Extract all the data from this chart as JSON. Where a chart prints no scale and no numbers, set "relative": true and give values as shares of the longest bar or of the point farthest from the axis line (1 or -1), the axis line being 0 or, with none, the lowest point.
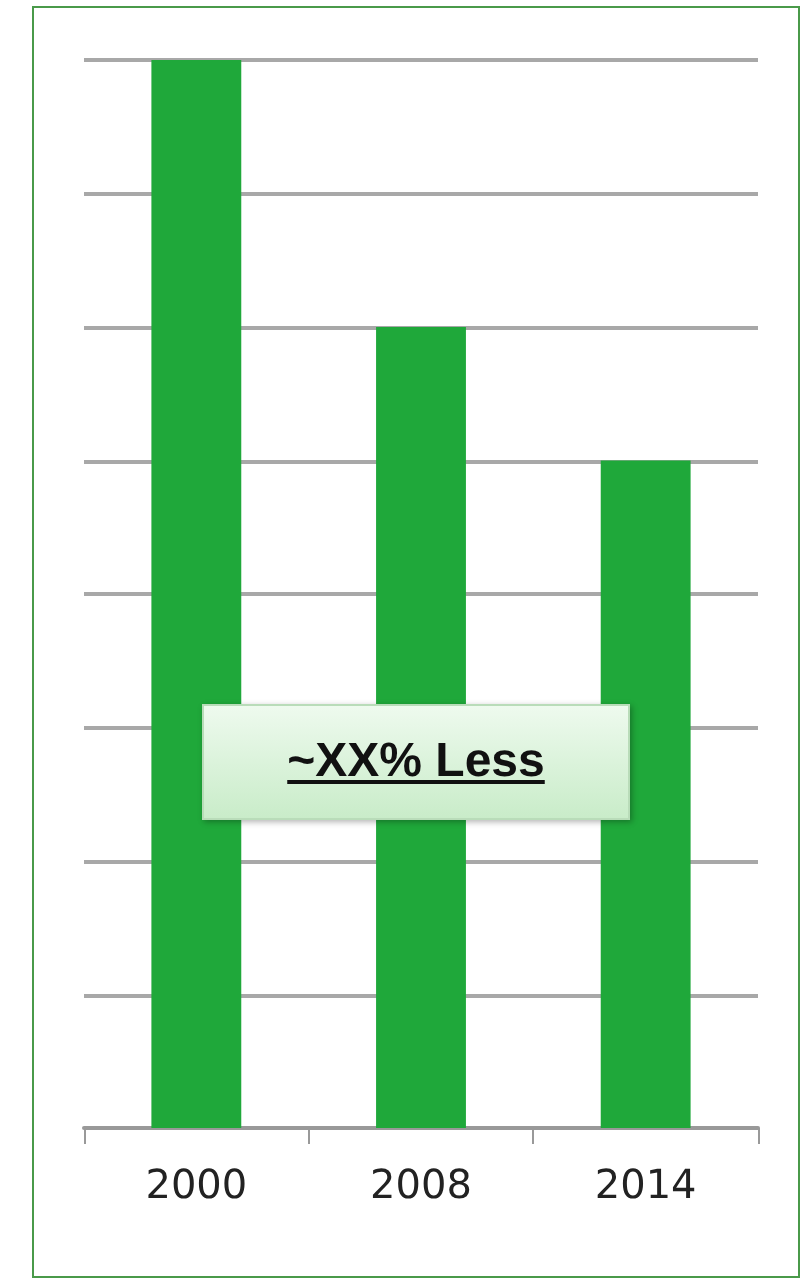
{
  "chart_data": {
    "type": "bar",
    "categories": [
      "2000",
      "2008",
      "2014"
    ],
    "values": [
      1,
      0.75,
      0.625
    ],
    "color": "#1fa83a",
    "relative": true,
    "grid": "y",
    "annotations": [
      "~XX% Less"
    ]
  }
}
